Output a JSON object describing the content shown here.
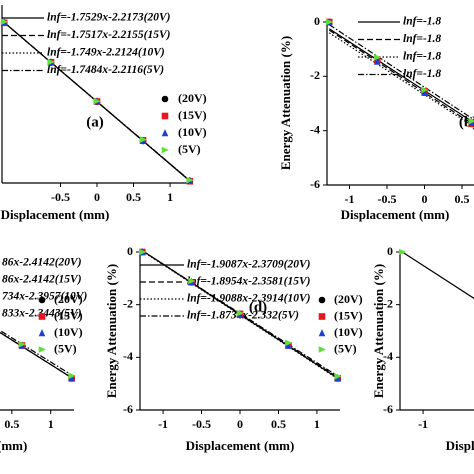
{
  "chart_data": [
    {
      "type": "scatter",
      "label": "(a)",
      "xlabel": "Displacement (mm)",
      "xlim": [
        -1.3,
        1.3
      ],
      "ylim": [
        -4.5,
        0.5
      ],
      "xticks": [
        -0.5,
        0,
        0.5,
        1
      ],
      "series": [
        {
          "name": "lnf=-1.7529x-2.2173(20V)",
          "color": "#000000",
          "style": "solid",
          "x": [
            -1.27,
            1.27
          ],
          "values": [
            0.009,
            -4.444
          ]
        },
        {
          "name": "lnf=-1.7517x-2.2155(15V)",
          "color": "#000000",
          "style": "dashed",
          "x": [
            -1.27,
            1.27
          ],
          "values": [
            0.009,
            -4.44
          ]
        },
        {
          "name": "lnf=-1.749x-2.2124(10V)",
          "color": "#000000",
          "style": "dotted",
          "x": [
            -1.27,
            1.27
          ],
          "values": [
            0.009,
            -4.434
          ]
        },
        {
          "name": "lnf=-1.7484x-2.2116(5V)",
          "color": "#000000",
          "style": "dashdot",
          "x": [
            -1.27,
            1.27
          ],
          "values": [
            0.009,
            -4.432
          ]
        },
        {
          "name": "(20V)",
          "color": "#000000",
          "marker": "circle",
          "x": [
            -1.27,
            -0.63,
            0,
            0.63,
            1.27
          ],
          "values": [
            0.0,
            -1.12,
            -2.22,
            -3.32,
            -4.44
          ]
        },
        {
          "name": "(15V)",
          "color": "#e8141e",
          "marker": "square",
          "x": [
            -1.27,
            -0.63,
            0,
            0.63,
            1.27
          ],
          "values": [
            0.0,
            -1.11,
            -2.21,
            -3.3,
            -4.45
          ]
        },
        {
          "name": "(10V)",
          "color": "#1c3fd6",
          "marker": "triangle",
          "x": [
            -1.27,
            -0.63,
            0,
            0.63,
            1.27
          ],
          "values": [
            0.02,
            -1.1,
            -2.2,
            -3.31,
            -4.43
          ]
        },
        {
          "name": "(5V)",
          "color": "#5ee03a",
          "marker": "triangle-right",
          "x": [
            -1.27,
            -0.63,
            0,
            0.63,
            1.27
          ],
          "values": [
            0.03,
            -1.1,
            -2.2,
            -3.28,
            -4.42
          ]
        }
      ]
    },
    {
      "type": "scatter",
      "label": "(b)",
      "xlabel": "Displacement (mm)",
      "ylabel": "Energy Attenuation (%)",
      "xlim": [
        -1.3,
        1.3
      ],
      "ylim": [
        -6,
        0
      ],
      "xticks": [
        -1,
        -0.5,
        0,
        0.5
      ],
      "yticks": [
        0,
        -2,
        -4,
        -6
      ],
      "series": [
        {
          "name": "lnf=-1.8",
          "color": "#000000",
          "style": "solid",
          "x": [
            -1.27,
            1.27
          ],
          "values": [
            -0.25,
            -4.8
          ]
        },
        {
          "name": "lnf=-1.8",
          "color": "#000000",
          "style": "dashed",
          "x": [
            -1.27,
            1.27
          ],
          "values": [
            -0.3,
            -4.9
          ]
        },
        {
          "name": "lnf=-1.8",
          "color": "#000000",
          "style": "dotted",
          "x": [
            -1.27,
            1.27
          ],
          "values": [
            -0.4,
            -4.95
          ]
        },
        {
          "name": "lnf=-1.8",
          "color": "#000000",
          "style": "dashdot",
          "x": [
            -1.27,
            1.27
          ],
          "values": [
            -0.1,
            -4.7
          ]
        },
        {
          "color": "#000000",
          "marker": "circle",
          "x": [
            -1.27,
            -0.63,
            0,
            0.63
          ],
          "values": [
            0.0,
            -1.4,
            -2.6,
            -3.7
          ]
        },
        {
          "color": "#e8141e",
          "marker": "square",
          "x": [
            -1.27,
            -0.63,
            0,
            0.63
          ],
          "values": [
            0.0,
            -1.4,
            -2.55,
            -3.75
          ]
        },
        {
          "color": "#1c3fd6",
          "marker": "triangle",
          "x": [
            -1.27,
            -0.63,
            0,
            0.63
          ],
          "values": [
            0.0,
            -1.45,
            -2.6,
            -3.7
          ]
        },
        {
          "color": "#5ee03a",
          "marker": "triangle-right",
          "x": [
            -1.27,
            -0.63,
            0,
            0.63
          ],
          "values": [
            0.0,
            -1.3,
            -2.5,
            -3.65
          ]
        }
      ]
    },
    {
      "type": "scatter",
      "xlabel": "Displacement (mm)",
      "xlim": [
        -1.3,
        1.3
      ],
      "ylim": [
        -6,
        0
      ],
      "xticks": [
        0.5,
        1
      ],
      "series": [
        {
          "name": "86x-2.4142(20V)",
          "color": "#000000",
          "style": "solid",
          "x": [
            -1.27,
            1.27
          ],
          "values": [
            -0.052,
            -4.776
          ]
        },
        {
          "name": "86x-2.4142(15V)",
          "color": "#000000",
          "style": "dashed",
          "x": [
            -1.27,
            1.27
          ],
          "values": [
            -0.052,
            -4.776
          ]
        },
        {
          "name": "734x-2.3957(10V)",
          "color": "#000000",
          "style": "dotted",
          "x": [
            -1.27,
            1.27
          ],
          "values": [
            -0.016,
            -4.775
          ]
        },
        {
          "name": "833x-2.3443(5V)",
          "color": "#000000",
          "style": "dashdot",
          "x": [
            -1.27,
            1.27
          ],
          "values": [
            -0.016,
            -4.672
          ]
        },
        {
          "name": "(20V)",
          "color": "#000000",
          "marker": "circle",
          "x": [
            -1.27,
            -0.63,
            0,
            0.63,
            1.27
          ],
          "values": [
            0.0,
            -1.15,
            -2.4,
            -3.55,
            -4.8
          ]
        },
        {
          "name": "(15V)",
          "color": "#e8141e",
          "marker": "square",
          "x": [
            -1.27,
            -0.63,
            0,
            0.63,
            1.27
          ],
          "values": [
            0.0,
            -1.15,
            -2.4,
            -3.55,
            -4.8
          ]
        },
        {
          "name": "(10V)",
          "color": "#1c3fd6",
          "marker": "triangle",
          "x": [
            -1.27,
            -0.63,
            0,
            0.63,
            1.27
          ],
          "values": [
            0.0,
            -1.15,
            -2.38,
            -3.55,
            -4.78
          ]
        },
        {
          "name": "(5V)",
          "color": "#5ee03a",
          "marker": "triangle-right",
          "x": [
            -1.27,
            -0.63,
            0,
            0.63,
            1.27
          ],
          "values": [
            0.0,
            -1.12,
            -2.35,
            -3.5,
            -4.7
          ]
        }
      ]
    },
    {
      "type": "scatter",
      "label": "(d)",
      "xlabel": "Displacement (mm)",
      "ylabel": "Energy Attenuation (%)",
      "xlim": [
        -1.3,
        1.3
      ],
      "ylim": [
        -6,
        0
      ],
      "xticks": [
        -1,
        -0.5,
        0,
        0.5,
        1
      ],
      "yticks": [
        0,
        -2,
        -4,
        -6
      ],
      "series": [
        {
          "name": "lnf=-1.9087x-2.3709(20V)",
          "color": "#000000",
          "style": "solid",
          "x": [
            -1.27,
            1.27
          ],
          "values": [
            0.053,
            -4.795
          ]
        },
        {
          "name": "lnf=-1.8954x-2.3581(15V)",
          "color": "#000000",
          "style": "dashed",
          "x": [
            -1.27,
            1.27
          ],
          "values": [
            0.049,
            -4.765
          ]
        },
        {
          "name": "lnf=-1.9088x-2.3914(10V)",
          "color": "#000000",
          "style": "dotted",
          "x": [
            -1.27,
            1.27
          ],
          "values": [
            0.033,
            -4.815
          ]
        },
        {
          "name": "lnf=-1.8734x-2.332(5V)",
          "color": "#000000",
          "style": "dashdot",
          "x": [
            -1.27,
            1.27
          ],
          "values": [
            0.047,
            -4.711
          ]
        },
        {
          "name": "(20V)",
          "color": "#000000",
          "marker": "circle",
          "x": [
            -1.27,
            -0.63,
            0,
            0.63,
            1.27
          ],
          "values": [
            0.0,
            -1.15,
            -2.35,
            -3.55,
            -4.8
          ]
        },
        {
          "name": "(15V)",
          "color": "#e8141e",
          "marker": "square",
          "x": [
            -1.27,
            -0.63,
            0,
            0.63,
            1.27
          ],
          "values": [
            0.0,
            -1.15,
            -2.35,
            -3.55,
            -4.8
          ]
        },
        {
          "name": "(10V)",
          "color": "#1c3fd6",
          "marker": "triangle",
          "x": [
            -1.27,
            -0.63,
            0,
            0.63,
            1.27
          ],
          "values": [
            0.0,
            -1.13,
            -2.38,
            -3.55,
            -4.78
          ]
        },
        {
          "name": "(5V)",
          "color": "#5ee03a",
          "marker": "triangle-right",
          "x": [
            -1.27,
            -0.63,
            0,
            0.63,
            1.27
          ],
          "values": [
            0.0,
            -1.1,
            -2.32,
            -3.45,
            -4.72
          ]
        }
      ]
    },
    {
      "type": "scatter",
      "xlabel": "Displacement (mm)",
      "ylabel": "Energy Attenuation (%)",
      "xlim": [
        -1.3,
        1.3
      ],
      "ylim": [
        -6,
        0
      ],
      "xticks": [
        -1
      ],
      "yticks": [
        0,
        -2,
        -4,
        -6
      ],
      "series": [
        {
          "color": "#000000",
          "style": "solid",
          "x": [
            -1.27,
            1.27
          ],
          "values": [
            0.0,
            -4.8
          ]
        },
        {
          "color": "#5ee03a",
          "marker": "triangle-right",
          "x": [
            -1.27
          ],
          "values": [
            0.0
          ]
        }
      ]
    }
  ]
}
